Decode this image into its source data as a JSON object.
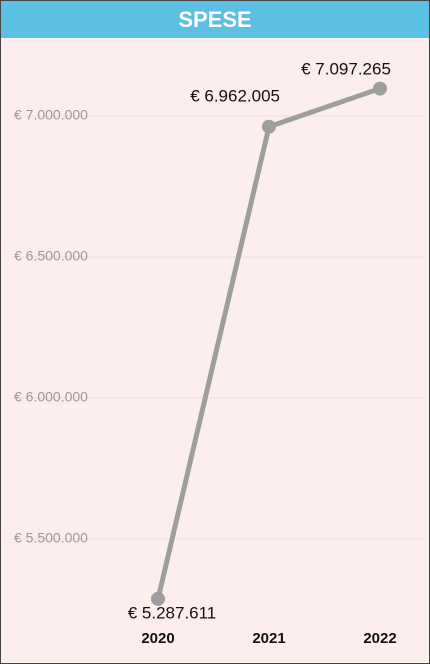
{
  "chart_data": {
    "type": "line",
    "title": "SPESE",
    "categories": [
      "2020",
      "2021",
      "2022"
    ],
    "values": [
      5287611,
      6962005,
      7097265
    ],
    "value_labels": [
      "€ 5.287.611",
      "€ 6.962.005",
      "€ 7.097.265"
    ],
    "color": "#9e9e9e",
    "ylim": [
      5200000,
      7250000
    ],
    "yticks": [
      {
        "value": 5500000,
        "label": "€ 5.500.000"
      },
      {
        "value": 6000000,
        "label": "€ 6.000.000"
      },
      {
        "value": 6500000,
        "label": "€ 6.500.000"
      },
      {
        "value": 7000000,
        "label": "€ 7.000.000"
      }
    ],
    "grid": true
  }
}
